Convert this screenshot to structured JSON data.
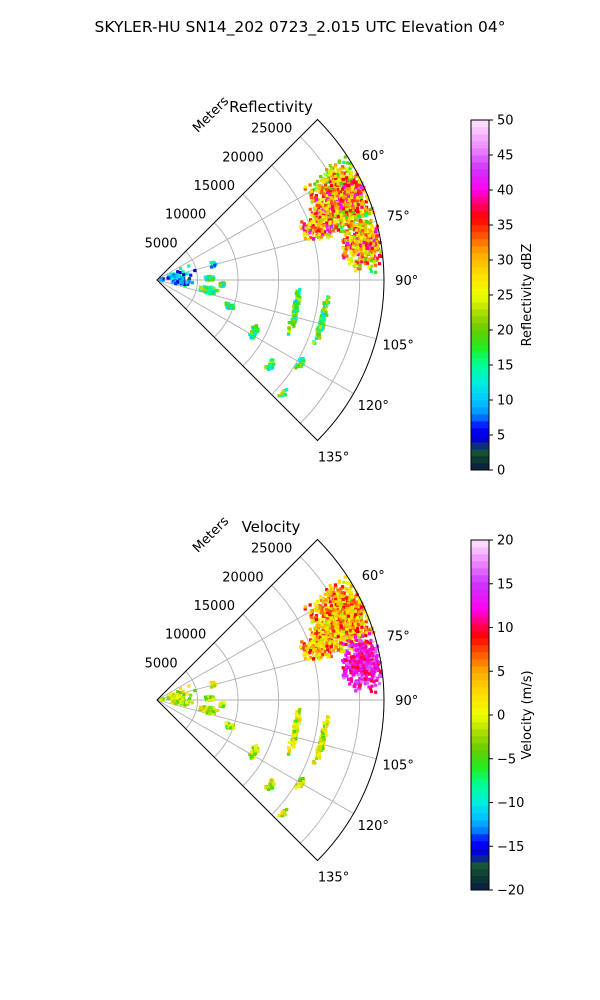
{
  "figure": {
    "suptitle": "SKYLER-HU  SN14_202  0723_2.015 UTC Elevation 04°"
  },
  "chart_data": [
    {
      "type": "polar-sector",
      "panel": "reflectivity",
      "title": "Reflectivity",
      "radial_label": "Meters",
      "theta_range_deg": [
        45,
        135
      ],
      "r_max": 28000,
      "r_ticks": [
        5000,
        10000,
        15000,
        20000,
        25000
      ],
      "r_tick_labels": [
        "5000",
        "10000",
        "15000",
        "20000",
        "25000"
      ],
      "theta_ticks": [
        60,
        75,
        90,
        105,
        120,
        135
      ],
      "theta_tick_labels": [
        "60°",
        "75°",
        "90°",
        "105°",
        "120°",
        "135°"
      ],
      "grid": true,
      "colorbar": {
        "label": "Reflectivity dBZ",
        "range": [
          0,
          50
        ],
        "ticks": [
          0,
          5,
          10,
          15,
          20,
          25,
          30,
          35,
          40,
          45,
          50
        ],
        "tick_labels": [
          "0",
          "5",
          "10",
          "15",
          "20",
          "25",
          "30",
          "35",
          "40",
          "45",
          "50"
        ],
        "stops": [
          {
            "v": 0,
            "c": "#0b1a4a"
          },
          {
            "v": 1.5,
            "c": "#0a3a30"
          },
          {
            "v": 3,
            "c": "#1a5a3c"
          },
          {
            "v": 4,
            "c": "#0000c8"
          },
          {
            "v": 6,
            "c": "#0000ff"
          },
          {
            "v": 8,
            "c": "#0090ff"
          },
          {
            "v": 10,
            "c": "#00c8ff"
          },
          {
            "v": 12.5,
            "c": "#00eedd"
          },
          {
            "v": 15,
            "c": "#00ff99"
          },
          {
            "v": 17.5,
            "c": "#22ee22"
          },
          {
            "v": 20,
            "c": "#66cc00"
          },
          {
            "v": 22.5,
            "c": "#aadd00"
          },
          {
            "v": 25,
            "c": "#eeff00"
          },
          {
            "v": 28,
            "c": "#ffdd00"
          },
          {
            "v": 31,
            "c": "#ffaa00"
          },
          {
            "v": 34,
            "c": "#ff4400"
          },
          {
            "v": 36,
            "c": "#ff0000"
          },
          {
            "v": 38,
            "c": "#ff0066"
          },
          {
            "v": 40,
            "c": "#ff00ee"
          },
          {
            "v": 43,
            "c": "#cc33ff"
          },
          {
            "v": 46,
            "c": "#ee88ff"
          },
          {
            "v": 50,
            "c": "#ffe6ff"
          }
        ]
      }
    },
    {
      "type": "polar-sector",
      "panel": "velocity",
      "title": "Velocity",
      "radial_label": "Meters",
      "theta_range_deg": [
        45,
        135
      ],
      "r_max": 28000,
      "r_ticks": [
        5000,
        10000,
        15000,
        20000,
        25000
      ],
      "r_tick_labels": [
        "5000",
        "10000",
        "15000",
        "20000",
        "25000"
      ],
      "theta_ticks": [
        60,
        75,
        90,
        105,
        120,
        135
      ],
      "theta_tick_labels": [
        "60°",
        "75°",
        "90°",
        "105°",
        "120°",
        "135°"
      ],
      "grid": true,
      "colorbar": {
        "label": "Velocity (m/s)",
        "range": [
          -20,
          20
        ],
        "ticks": [
          -20,
          -15,
          -10,
          -5,
          0,
          5,
          10,
          15,
          20
        ],
        "tick_labels": [
          "−20",
          "−15",
          "−10",
          "−5",
          "0",
          "5",
          "10",
          "15",
          "20"
        ],
        "stops": [
          {
            "v": -20,
            "c": "#0b1a4a"
          },
          {
            "v": -18.5,
            "c": "#0a3a30"
          },
          {
            "v": -17,
            "c": "#1a5a3c"
          },
          {
            "v": -16,
            "c": "#0000c8"
          },
          {
            "v": -14.5,
            "c": "#0000ff"
          },
          {
            "v": -13,
            "c": "#0090ff"
          },
          {
            "v": -11.5,
            "c": "#00c8ff"
          },
          {
            "v": -10,
            "c": "#00eedd"
          },
          {
            "v": -8,
            "c": "#00ff99"
          },
          {
            "v": -6,
            "c": "#22ee22"
          },
          {
            "v": -4,
            "c": "#66cc00"
          },
          {
            "v": -2,
            "c": "#aadd00"
          },
          {
            "v": 0,
            "c": "#eeff00"
          },
          {
            "v": 2.5,
            "c": "#ffdd00"
          },
          {
            "v": 5,
            "c": "#ffaa00"
          },
          {
            "v": 7.5,
            "c": "#ff4400"
          },
          {
            "v": 9,
            "c": "#ff0000"
          },
          {
            "v": 10.5,
            "c": "#ff0066"
          },
          {
            "v": 12,
            "c": "#ff00ee"
          },
          {
            "v": 15,
            "c": "#cc33ff"
          },
          {
            "v": 17.5,
            "c": "#ee88ff"
          },
          {
            "v": 20,
            "c": "#ffe6ff"
          }
        ]
      }
    }
  ]
}
